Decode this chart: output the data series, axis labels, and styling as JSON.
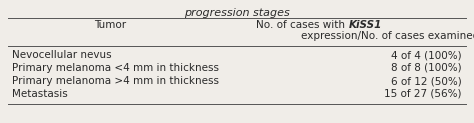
{
  "title": "progression stages",
  "col1_header": "Tumor",
  "col2_header_line1_plain": "No. of cases with ",
  "col2_header_line1_italic": "KiSS1",
  "col2_header_line2": "expression/No. of cases examined",
  "rows": [
    [
      "Nevocellular nevus",
      "4 of 4 (100%)"
    ],
    [
      "Primary melanoma <4 mm in thickness",
      "8 of 8 (100%)"
    ],
    [
      "Primary melanoma >4 mm in thickness",
      "6 of 12 (50%)"
    ],
    [
      "Metastasis",
      "15 of 27 (56%)"
    ]
  ],
  "background_color": "#f0ede8",
  "text_color": "#2a2a2a",
  "line_color": "#555555",
  "font_size": 7.5,
  "title_font_size": 8.0,
  "header_font_size": 7.5
}
